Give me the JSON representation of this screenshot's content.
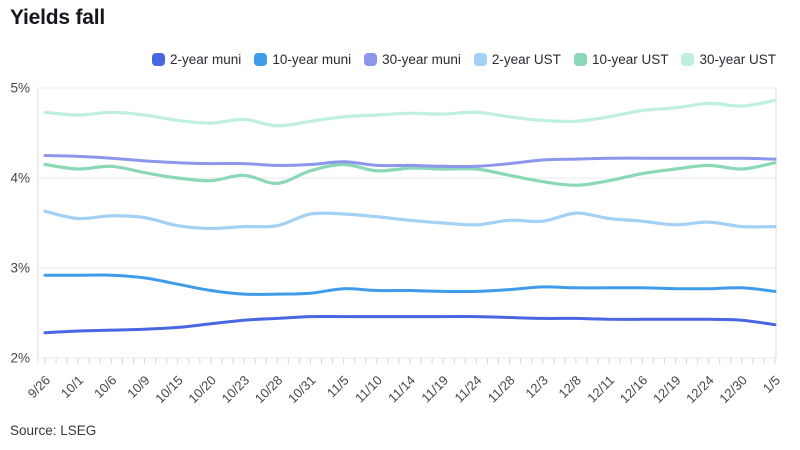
{
  "title": "Yields fall",
  "source": "Source: LSEG",
  "chart_data": {
    "type": "line",
    "title": "Yields fall",
    "xlabel": "",
    "ylabel": "",
    "ylim": [
      2,
      5
    ],
    "y_ticks": [
      "2%",
      "3%",
      "4%",
      "5%"
    ],
    "grid": "horizontal",
    "legend_position": "top",
    "categories": [
      "9/26",
      "10/1",
      "10/6",
      "10/9",
      "10/15",
      "10/20",
      "10/23",
      "10/28",
      "10/31",
      "11/5",
      "11/10",
      "11/14",
      "11/19",
      "11/24",
      "11/28",
      "12/3",
      "12/8",
      "12/11",
      "12/16",
      "12/19",
      "12/24",
      "12/30",
      "1/5"
    ],
    "series": [
      {
        "name": "2-year muni",
        "color": "#4a66e3",
        "values": [
          2.28,
          2.3,
          2.31,
          2.32,
          2.34,
          2.38,
          2.42,
          2.44,
          2.46,
          2.46,
          2.46,
          2.46,
          2.46,
          2.46,
          2.45,
          2.44,
          2.44,
          2.43,
          2.43,
          2.43,
          2.43,
          2.42,
          2.37
        ]
      },
      {
        "name": "10-year muni",
        "color": "#3f9ce9",
        "values": [
          2.92,
          2.92,
          2.92,
          2.89,
          2.82,
          2.75,
          2.71,
          2.71,
          2.72,
          2.77,
          2.75,
          2.75,
          2.74,
          2.74,
          2.76,
          2.79,
          2.78,
          2.78,
          2.78,
          2.77,
          2.77,
          2.78,
          2.74
        ]
      },
      {
        "name": "30-year muni",
        "color": "#8c96ea",
        "values": [
          4.25,
          4.24,
          4.22,
          4.19,
          4.17,
          4.16,
          4.16,
          4.14,
          4.15,
          4.18,
          4.14,
          4.14,
          4.13,
          4.13,
          4.16,
          4.2,
          4.21,
          4.22,
          4.22,
          4.22,
          4.22,
          4.22,
          4.21
        ]
      },
      {
        "name": "2-year UST",
        "color": "#a3d0f5",
        "values": [
          3.63,
          3.55,
          3.58,
          3.56,
          3.47,
          3.44,
          3.46,
          3.47,
          3.6,
          3.6,
          3.57,
          3.53,
          3.5,
          3.48,
          3.53,
          3.52,
          3.61,
          3.55,
          3.52,
          3.48,
          3.51,
          3.46,
          3.46
        ]
      },
      {
        "name": "10-year UST",
        "color": "#8ad8b6",
        "values": [
          4.15,
          4.1,
          4.13,
          4.06,
          4.0,
          3.97,
          4.03,
          3.94,
          4.08,
          4.15,
          4.08,
          4.11,
          4.1,
          4.1,
          4.03,
          3.96,
          3.92,
          3.97,
          4.05,
          4.1,
          4.14,
          4.1,
          4.17
        ]
      },
      {
        "name": "30-year UST",
        "color": "#bff0dc",
        "values": [
          4.73,
          4.7,
          4.73,
          4.7,
          4.64,
          4.61,
          4.65,
          4.58,
          4.63,
          4.68,
          4.7,
          4.72,
          4.71,
          4.73,
          4.68,
          4.64,
          4.63,
          4.68,
          4.75,
          4.78,
          4.83,
          4.8,
          4.86
        ]
      }
    ]
  },
  "style": {
    "grid_color": "#e9e9ec",
    "axis_line_color": "#dcdce0",
    "tick_color": "#d4d4d8",
    "axis_text_color": "#45454d"
  }
}
